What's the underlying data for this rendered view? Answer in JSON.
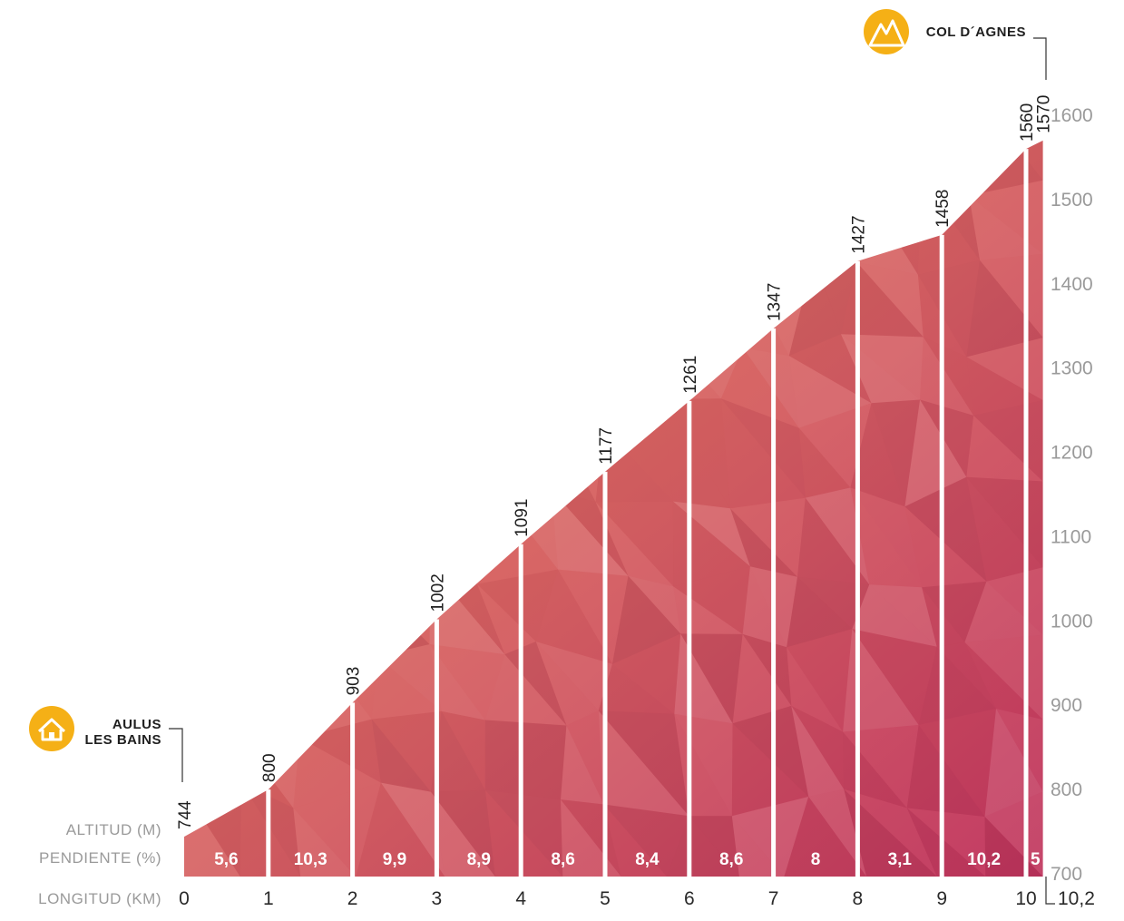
{
  "chart_data": {
    "type": "area",
    "title": "",
    "xlabel": "LONGITUD (KM)",
    "ylabel": "ALTITUD (M)",
    "slope_label": "PENDIENTE (%)",
    "x": [
      0,
      1,
      2,
      3,
      4,
      5,
      6,
      7,
      8,
      9,
      10,
      10.2
    ],
    "x_tick_labels": [
      "0",
      "1",
      "2",
      "3",
      "4",
      "5",
      "6",
      "7",
      "8",
      "9",
      "10",
      "10,2"
    ],
    "altitude": [
      744,
      800,
      903,
      1002,
      1091,
      1177,
      1261,
      1347,
      1427,
      1458,
      1560,
      1570
    ],
    "altitude_labels": [
      "744",
      "800",
      "903",
      "1002",
      "1091",
      "1177",
      "1261",
      "1347",
      "1427",
      "1458",
      "1560",
      "1570"
    ],
    "slopes": [
      "5,6",
      "10,3",
      "9,9",
      "8,9",
      "8,6",
      "8,4",
      "8,6",
      "8",
      "3,1",
      "10,2",
      "5"
    ],
    "ylim": [
      700,
      1600
    ],
    "y_ticks": [
      700,
      800,
      900,
      1000,
      1100,
      1200,
      1300,
      1400,
      1500,
      1600
    ],
    "y_tick_labels": [
      "700",
      "800",
      "900",
      "1000",
      "1100",
      "1200",
      "1300",
      "1400",
      "1500",
      "1600"
    ],
    "start": {
      "name_line1": "AULUS",
      "name_line2": "LES BAINS",
      "icon": "house-icon"
    },
    "finish": {
      "name": "COL D´AGNES",
      "icon": "mountain-icon"
    },
    "colors": {
      "fill_light": "#e8825a",
      "fill_dark": "#c0355e",
      "icon": "#f5b016",
      "axis_text": "#9a9a9a"
    },
    "grid": false
  }
}
